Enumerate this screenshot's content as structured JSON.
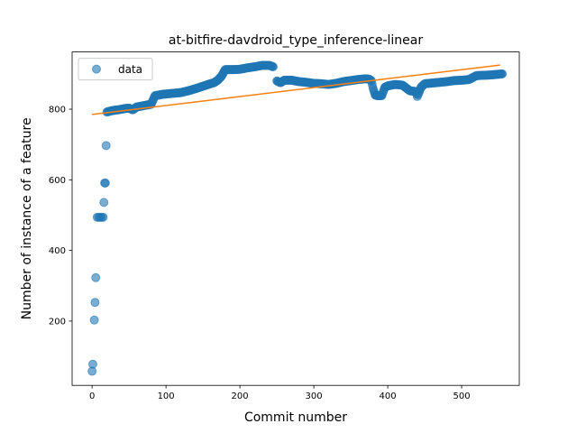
{
  "chart_data": {
    "type": "scatter",
    "title": "at-bitfire-davdroid_type_inference-linear",
    "xlabel": "Commit number",
    "ylabel": "Number of instance of a feature",
    "xlim": [
      -27,
      578
    ],
    "ylim": [
      18,
      962
    ],
    "xticks": [
      0,
      100,
      200,
      300,
      400,
      500
    ],
    "yticks": [
      200,
      400,
      600,
      800
    ],
    "grid": false,
    "legend": {
      "position": "top-left",
      "entries": [
        "data"
      ]
    },
    "colors": {
      "data": "#1f77b4",
      "fit": "#ff7f0e"
    },
    "series": [
      {
        "name": "data",
        "kind": "scatter",
        "points": [
          [
            0,
            58
          ],
          [
            1,
            78
          ],
          [
            3,
            203
          ],
          [
            4,
            253
          ],
          [
            5,
            323
          ],
          [
            7,
            494
          ],
          [
            9,
            494
          ],
          [
            11,
            494
          ],
          [
            13,
            494
          ],
          [
            15,
            494
          ],
          [
            16,
            536
          ],
          [
            17,
            591
          ],
          [
            18,
            591
          ],
          [
            19,
            697
          ],
          [
            20,
            792
          ],
          [
            25,
            795
          ],
          [
            30,
            797
          ],
          [
            35,
            798
          ],
          [
            40,
            800
          ],
          [
            45,
            802
          ],
          [
            50,
            803
          ],
          [
            55,
            798
          ],
          [
            60,
            806
          ],
          [
            65,
            808
          ],
          [
            70,
            810
          ],
          [
            75,
            812
          ],
          [
            80,
            814
          ],
          [
            85,
            838
          ],
          [
            90,
            840
          ],
          [
            95,
            842
          ],
          [
            100,
            843
          ],
          [
            110,
            845
          ],
          [
            120,
            847
          ],
          [
            130,
            852
          ],
          [
            140,
            858
          ],
          [
            150,
            865
          ],
          [
            160,
            872
          ],
          [
            165,
            875
          ],
          [
            170,
            882
          ],
          [
            175,
            893
          ],
          [
            180,
            912
          ],
          [
            190,
            912
          ],
          [
            200,
            913
          ],
          [
            210,
            917
          ],
          [
            220,
            920
          ],
          [
            230,
            924
          ],
          [
            240,
            924
          ],
          [
            245,
            920
          ],
          [
            250,
            880
          ],
          [
            255,
            875
          ],
          [
            260,
            882
          ],
          [
            270,
            882
          ],
          [
            280,
            878
          ],
          [
            290,
            876
          ],
          [
            300,
            873
          ],
          [
            310,
            872
          ],
          [
            320,
            870
          ],
          [
            330,
            873
          ],
          [
            340,
            878
          ],
          [
            350,
            881
          ],
          [
            360,
            884
          ],
          [
            370,
            886
          ],
          [
            375,
            885
          ],
          [
            378,
            880
          ],
          [
            380,
            860
          ],
          [
            383,
            840
          ],
          [
            386,
            838
          ],
          [
            392,
            838
          ],
          [
            396,
            862
          ],
          [
            400,
            866
          ],
          [
            410,
            870
          ],
          [
            420,
            868
          ],
          [
            430,
            852
          ],
          [
            438,
            850
          ],
          [
            440,
            836
          ],
          [
            445,
            862
          ],
          [
            450,
            872
          ],
          [
            460,
            874
          ],
          [
            470,
            876
          ],
          [
            480,
            878
          ],
          [
            490,
            881
          ],
          [
            500,
            882
          ],
          [
            510,
            884
          ],
          [
            520,
            895
          ],
          [
            530,
            896
          ],
          [
            540,
            897
          ],
          [
            550,
            899
          ],
          [
            555,
            900
          ]
        ]
      },
      {
        "name": "",
        "kind": "line",
        "points": [
          [
            0,
            785
          ],
          [
            552,
            925
          ]
        ]
      }
    ]
  }
}
